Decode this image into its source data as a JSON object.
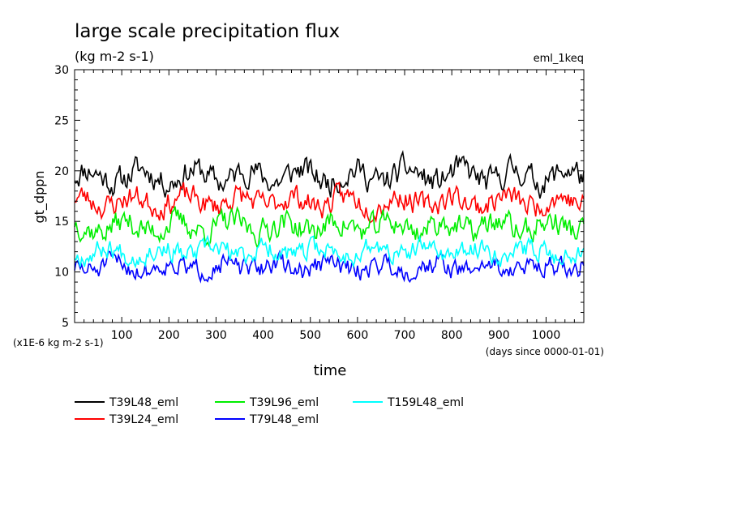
{
  "chart_data": {
    "type": "line",
    "title": "large scale precipitation flux",
    "subtitle": "(kg m-2 s-1)",
    "experiment_label": "eml_1keq",
    "ylabel": "gt_dppn",
    "xlabel": "time",
    "x_units": "(days since 0000-01-01)",
    "y_units": "(x1E-6 kg m-2 s-1)",
    "xlim": [
      0,
      1080
    ],
    "ylim": [
      5,
      30
    ],
    "x_ticks": [
      "100",
      "200",
      "300",
      "400",
      "500",
      "600",
      "700",
      "800",
      "900",
      "1000"
    ],
    "y_ticks": [
      "5",
      "10",
      "15",
      "20",
      "25",
      "30"
    ],
    "grid": false,
    "legend_position": "bottom",
    "series": [
      {
        "name": "T39L48_eml",
        "color": "#000000",
        "mean": 19.5,
        "amplitude": 1.3,
        "noise": 1.1,
        "seed": 11
      },
      {
        "name": "T39L24_eml",
        "color": "#ff0000",
        "mean": 17.0,
        "amplitude": 1.0,
        "noise": 1.0,
        "seed": 23
      },
      {
        "name": "T39L96_eml",
        "color": "#00ee00",
        "mean": 14.5,
        "amplitude": 1.0,
        "noise": 1.05,
        "seed": 37
      },
      {
        "name": "T79L48_eml",
        "color": "#0000ff",
        "mean": 10.5,
        "amplitude": 0.8,
        "noise": 0.85,
        "seed": 51
      },
      {
        "name": "T159L48_eml",
        "color": "#00ffff",
        "mean": 12.0,
        "amplitude": 0.8,
        "noise": 0.85,
        "seed": 67
      }
    ]
  }
}
